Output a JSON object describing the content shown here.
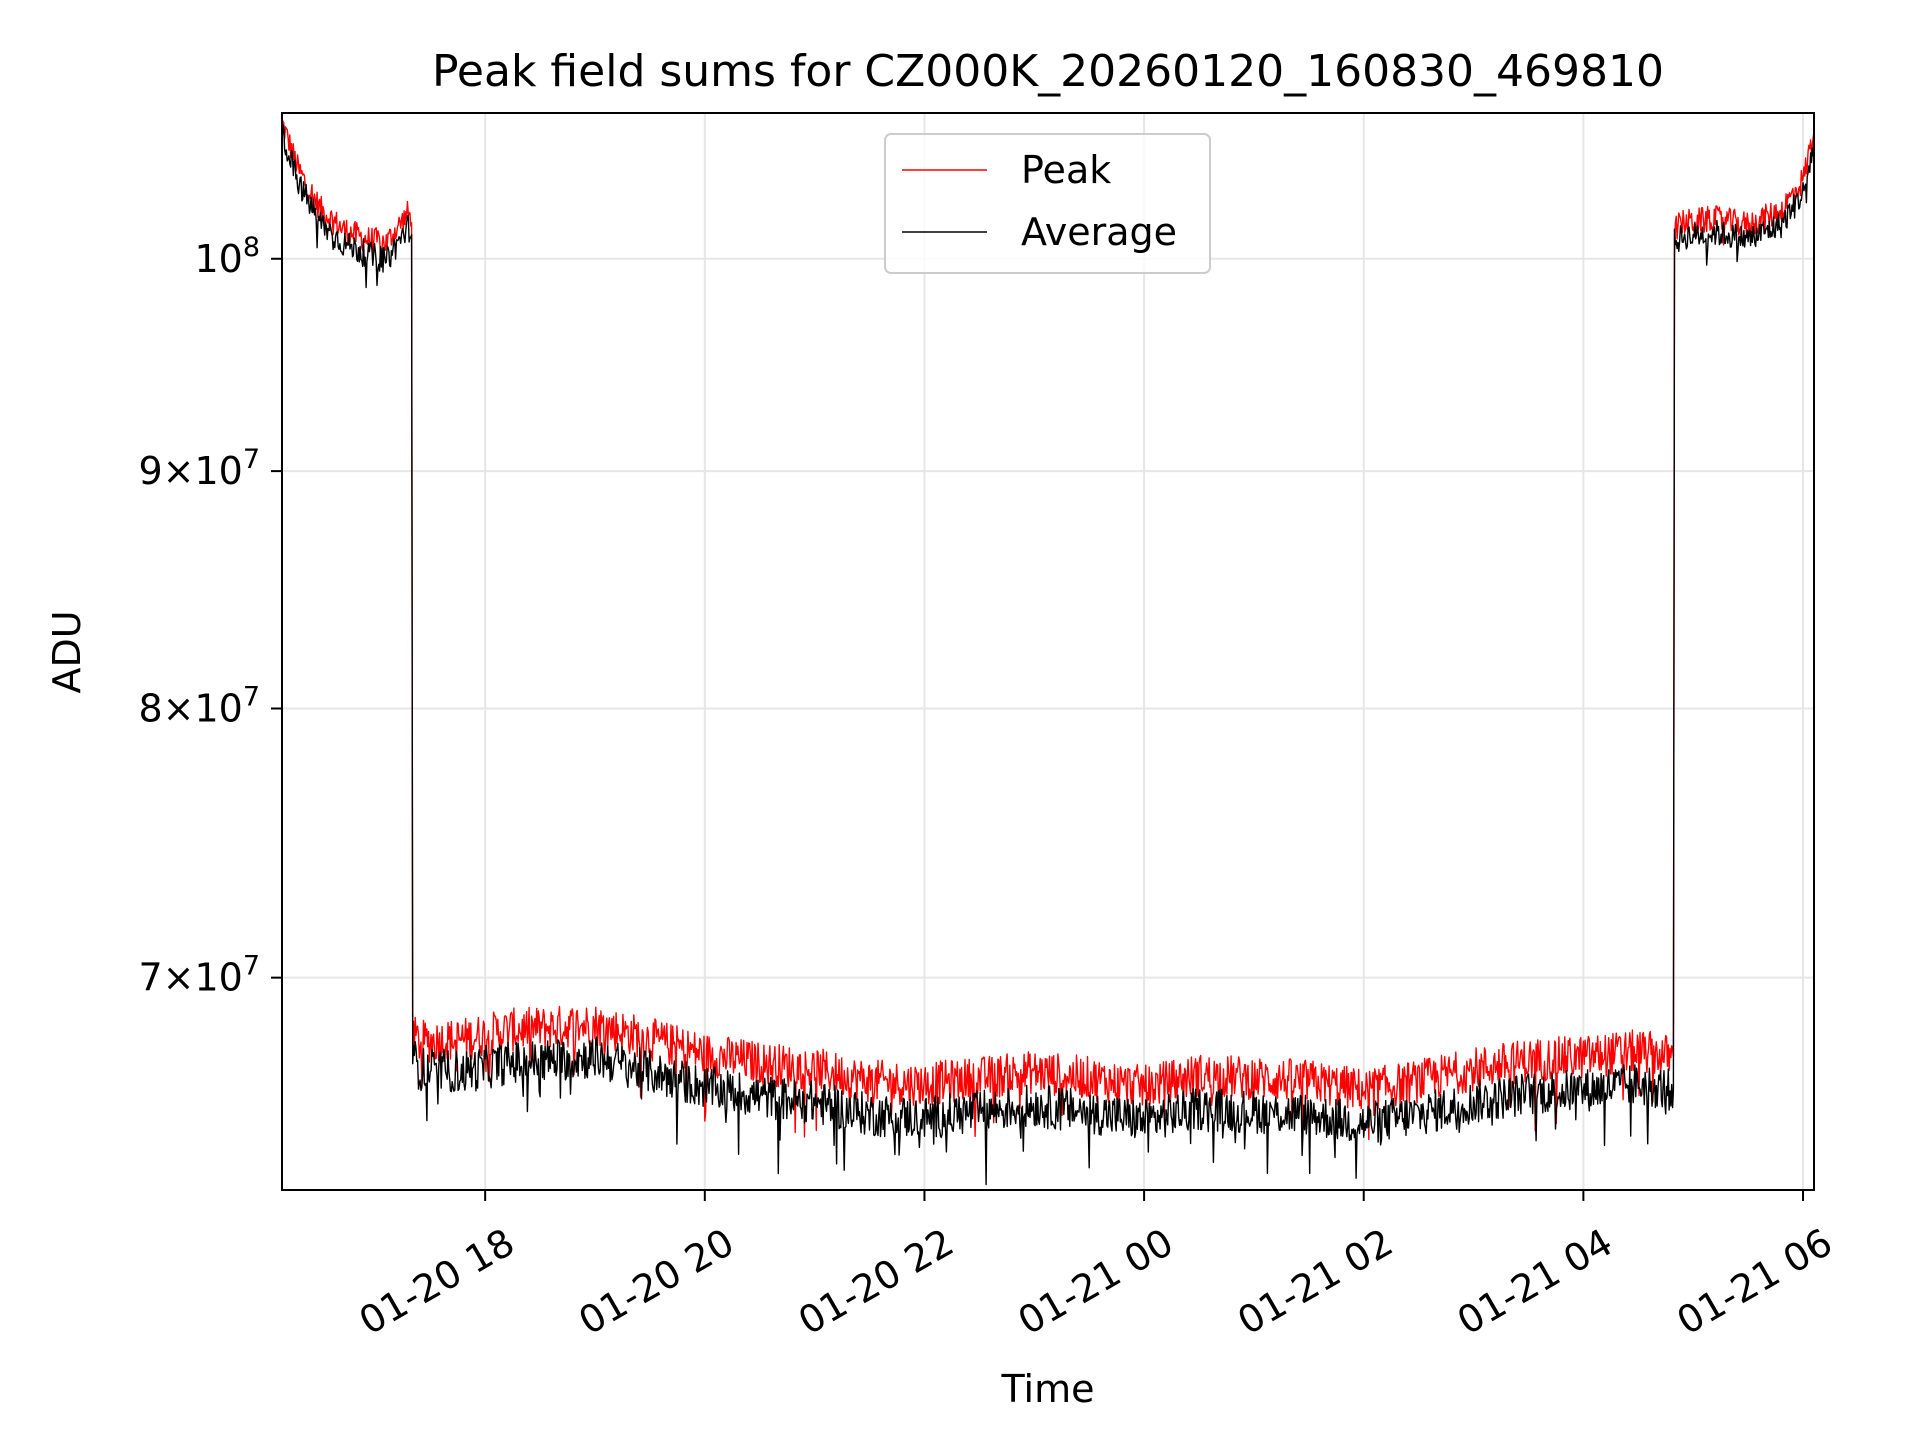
{
  "chart_data": {
    "type": "line",
    "title": "Peak field sums for CZ000K_20260120_160830_469810",
    "xlabel": "Time",
    "ylabel": "ADU",
    "yscale": "log",
    "grid": true,
    "legend_position": "upper-center",
    "x_range_hours": [
      16.15,
      30.1
    ],
    "y_range": [
      63000000,
      107500000
    ],
    "x_ticks": [
      {
        "hour": 18,
        "label": "01-20 18"
      },
      {
        "hour": 20,
        "label": "01-20 20"
      },
      {
        "hour": 22,
        "label": "01-20 22"
      },
      {
        "hour": 24,
        "label": "01-21 00"
      },
      {
        "hour": 26,
        "label": "01-21 02"
      },
      {
        "hour": 28,
        "label": "01-21 04"
      },
      {
        "hour": 30,
        "label": "01-21 06"
      }
    ],
    "y_ticks": [
      {
        "value": 100000000,
        "mantissa": "",
        "exponent": "8",
        "base": "10"
      },
      {
        "value": 90000000,
        "mantissa": "9",
        "exponent": "7",
        "base": "10"
      },
      {
        "value": 80000000,
        "mantissa": "8",
        "exponent": "7",
        "base": "10"
      },
      {
        "value": 70000000,
        "mantissa": "7",
        "exponent": "7",
        "base": "10"
      }
    ],
    "times_symbol": "×",
    "series": [
      {
        "name": "Peak",
        "color": "#ff0000",
        "x_hours": [
          16.15,
          16.3,
          16.5,
          16.7,
          16.9,
          17.1,
          17.3,
          17.33,
          17.34,
          17.4,
          17.8,
          18.2,
          18.6,
          19.0,
          19.5,
          20.0,
          20.5,
          21.0,
          21.5,
          22.0,
          22.5,
          23.0,
          23.5,
          24.0,
          24.5,
          25.0,
          25.5,
          26.0,
          26.5,
          27.0,
          27.5,
          28.0,
          28.5,
          28.82,
          28.83,
          28.9,
          29.2,
          29.5,
          29.8,
          30.0,
          30.1
        ],
        "values": [
          107000000,
          104500000,
          102500000,
          101500000,
          101000000,
          100800000,
          102300000,
          101800000,
          68000000,
          67800000,
          67900000,
          68200000,
          68300000,
          68400000,
          67900000,
          67400000,
          67100000,
          66900000,
          66500000,
          66400000,
          66600000,
          66800000,
          66600000,
          66300000,
          66700000,
          66600000,
          66500000,
          66200000,
          66500000,
          66900000,
          67200000,
          67300000,
          67500000,
          67300000,
          101500000,
          101800000,
          102000000,
          101700000,
          102400000,
          104000000,
          106500000
        ]
      },
      {
        "name": "Average",
        "color": "#000000",
        "x_hours": [
          16.15,
          16.3,
          16.5,
          16.7,
          16.9,
          17.1,
          17.3,
          17.33,
          17.34,
          17.4,
          17.8,
          18.2,
          18.6,
          19.0,
          19.5,
          20.0,
          20.5,
          21.0,
          21.5,
          22.0,
          22.5,
          23.0,
          23.5,
          24.0,
          24.5,
          25.0,
          25.5,
          26.0,
          26.5,
          27.0,
          27.5,
          28.0,
          28.5,
          28.82,
          28.83,
          28.9,
          29.2,
          29.5,
          29.8,
          30.0,
          30.1
        ],
        "values": [
          106500000,
          103800000,
          101800000,
          100800000,
          100300000,
          99900000,
          101600000,
          101200000,
          67300000,
          66900000,
          66800000,
          67100000,
          67200000,
          67300000,
          66800000,
          66300000,
          66000000,
          65800000,
          65400000,
          65300000,
          65500000,
          65700000,
          65500000,
          65200000,
          65600000,
          65500000,
          65400000,
          65100000,
          65400000,
          65800000,
          66100000,
          66200000,
          66400000,
          66200000,
          100800000,
          101100000,
          101300000,
          101000000,
          101700000,
          103300000,
          105800000
        ]
      }
    ]
  }
}
